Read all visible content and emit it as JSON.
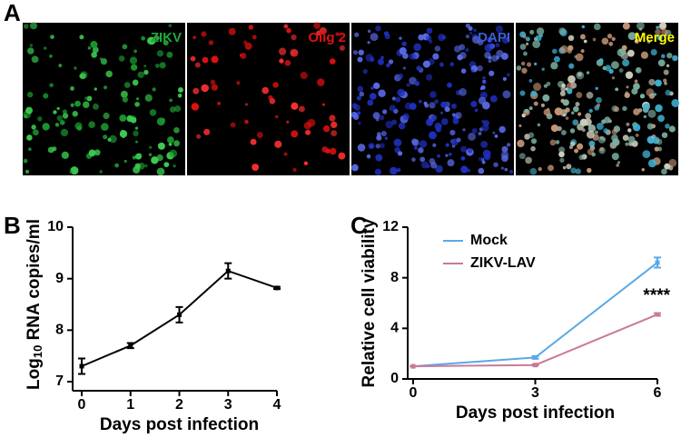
{
  "panels": {
    "a": "A",
    "b": "B",
    "c": "C"
  },
  "channels": [
    {
      "label": "ZIKV",
      "color": "#1fa83a"
    },
    {
      "label": "Olig 2",
      "color": "#e01010"
    },
    {
      "label": "DAPI",
      "color": "#3a5fd0"
    },
    {
      "label": "Merge",
      "color": "#ffff00"
    }
  ],
  "chart_data": [
    {
      "type": "line",
      "xlabel": "Days post infection",
      "ylabel": "Log",
      "ylabel_sub": "10",
      "ylabel_rest": " RNA copies/ml",
      "x": [
        0,
        1,
        2,
        3,
        4
      ],
      "series": [
        {
          "color": "#000000",
          "values": [
            7.3,
            7.7,
            8.3,
            9.15,
            8.82
          ],
          "errors": [
            0.15,
            0.05,
            0.15,
            0.15,
            0.02
          ]
        }
      ],
      "xlim": [
        0,
        4
      ],
      "xticks": [
        0,
        1,
        2,
        3,
        4
      ],
      "ylim": [
        7,
        10
      ],
      "yticks": [
        7,
        8,
        9,
        10
      ]
    },
    {
      "type": "line",
      "xlabel": "Days post infection",
      "ylabel": "Relative cell viability",
      "x": [
        0,
        3,
        6
      ],
      "series": [
        {
          "name": "Mock",
          "color": "#5aa9e6",
          "values": [
            1,
            1.7,
            9.2
          ],
          "errors": [
            0,
            0.1,
            0.4
          ]
        },
        {
          "name": "ZIKV-LAV",
          "color": "#c97a9c",
          "values": [
            1,
            1.1,
            5.1
          ],
          "errors": [
            0,
            0.05,
            0.1
          ]
        }
      ],
      "annotation": "****",
      "xlim": [
        0,
        6
      ],
      "xticks": [
        0,
        3,
        6
      ],
      "ylim": [
        0,
        12
      ],
      "yticks": [
        0,
        4,
        8,
        12
      ]
    }
  ]
}
